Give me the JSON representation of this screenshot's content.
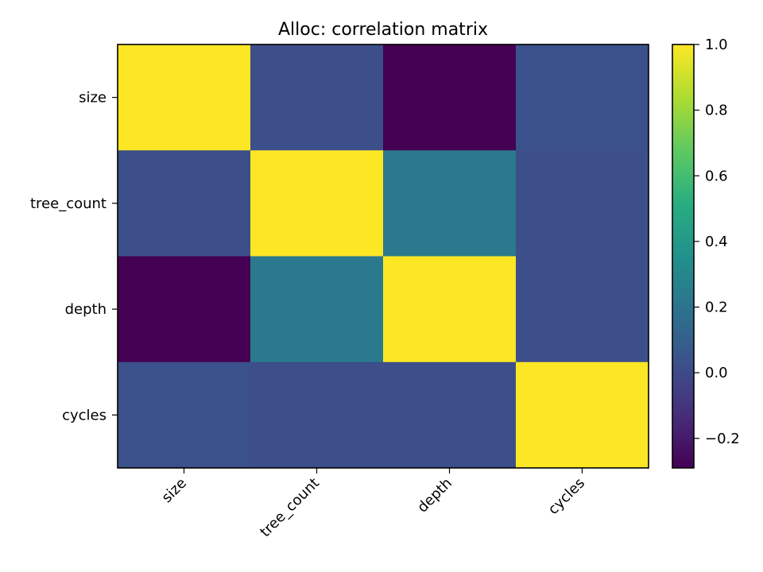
{
  "chart_data": {
    "type": "heatmap",
    "title": "Alloc: correlation matrix",
    "xlabel": "",
    "ylabel": "",
    "row_labels": [
      "size",
      "tree_count",
      "depth",
      "cycles"
    ],
    "col_labels": [
      "size",
      "tree_count",
      "depth",
      "cycles"
    ],
    "values": [
      [
        1.0,
        0.02,
        -0.29,
        0.03
      ],
      [
        0.02,
        1.0,
        0.23,
        0.02
      ],
      [
        -0.29,
        0.23,
        1.0,
        0.02
      ],
      [
        0.03,
        0.02,
        0.02,
        1.0
      ]
    ],
    "colormap": "viridis",
    "vmin": -0.29,
    "vmax": 1.0,
    "colorbar": {
      "ticks": [
        -0.2,
        0.0,
        0.2,
        0.4,
        0.6,
        0.8,
        1.0
      ],
      "tick_labels": [
        "−0.2",
        "0.0",
        "0.2",
        "0.4",
        "0.6",
        "0.8",
        "1.0"
      ]
    },
    "grid": false
  }
}
